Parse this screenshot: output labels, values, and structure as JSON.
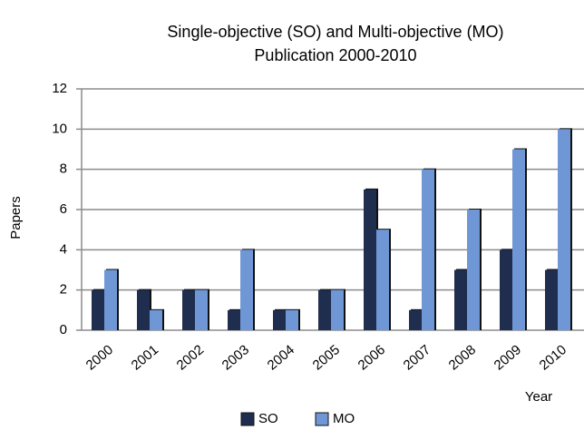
{
  "chart_data": {
    "type": "bar",
    "title": [
      "Single-objective (SO) and Multi-objective (MO)",
      "Publication 2000-2010"
    ],
    "x_label": "Year",
    "y_label": "Papers",
    "categories": [
      "2000",
      "2001",
      "2002",
      "2003",
      "2004",
      "2005",
      "2006",
      "2007",
      "2008",
      "2009",
      "2010"
    ],
    "series": [
      {
        "name": "SO",
        "color": "#1f2d4f",
        "values": [
          2,
          2,
          2,
          1,
          1,
          2,
          7,
          1,
          3,
          4,
          3
        ]
      },
      {
        "name": "MO",
        "color": "#6f97d6",
        "values": [
          3,
          1,
          2,
          4,
          1,
          2,
          5,
          8,
          6,
          9,
          10
        ]
      }
    ],
    "ylim": [
      0,
      12
    ],
    "yticks": [
      0,
      2,
      4,
      6,
      8,
      10,
      12
    ],
    "grid": true,
    "legend": "bottom"
  }
}
